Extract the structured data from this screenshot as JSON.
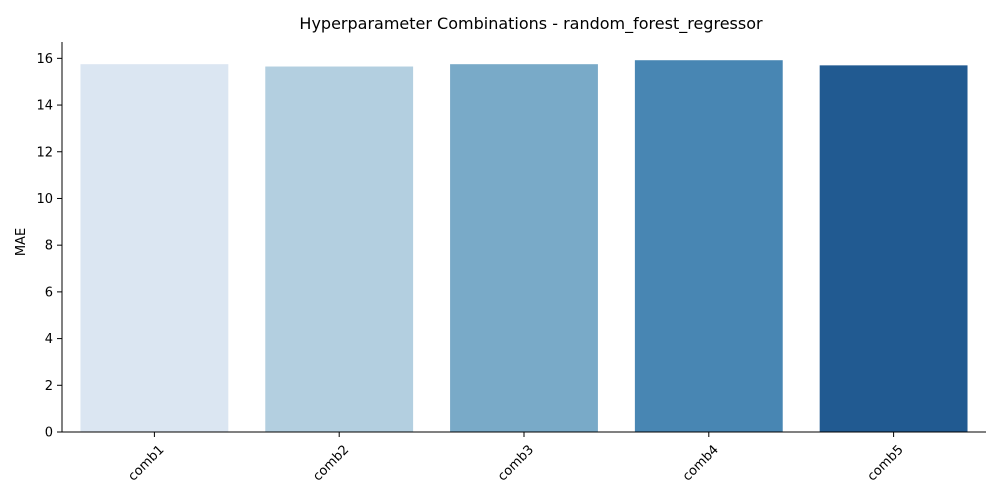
{
  "chart_data": {
    "type": "bar",
    "title": "Hyperparameter Combinations - random_forest_regressor",
    "xlabel": "",
    "ylabel": "MAE",
    "categories": [
      "comb1",
      "comb2",
      "comb3",
      "comb4",
      "comb5"
    ],
    "values": [
      15.75,
      15.65,
      15.75,
      15.92,
      15.7
    ],
    "colors": [
      "#dbe6f2",
      "#b3cfe0",
      "#79aac8",
      "#4886b3",
      "#215a91"
    ],
    "ylim": [
      0,
      16.7
    ],
    "yticks": [
      0,
      2,
      4,
      6,
      8,
      10,
      12,
      14,
      16
    ],
    "x_tick_rotation_deg": 45,
    "grid": false,
    "legend": "none"
  }
}
